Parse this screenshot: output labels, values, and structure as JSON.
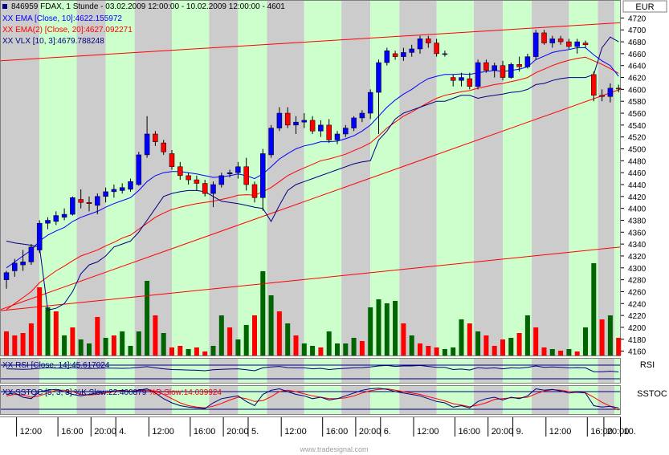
{
  "header": {
    "symbol_line": "846959  FDAX, 1 Stunde - 03.02.2009 12:00:00 - 10.02.2009 12:00:00 - 4601",
    "ema10_label": "XX EMA [Close, 10]:4622.155972",
    "ema20_label": "XX EMA(2) [Close, 20]:4627.092271",
    "vlx_label": "XX VLX [10, 3]:4679.788248"
  },
  "axis": {
    "currency": "EUR",
    "price_ticks": [
      4720,
      4700,
      4680,
      4660,
      4640,
      4620,
      4600,
      4580,
      4560,
      4540,
      4520,
      4500,
      4480,
      4460,
      4440,
      4420,
      4400,
      4380,
      4360,
      4340,
      4320,
      4300,
      4280,
      4260,
      4240,
      4220,
      4200,
      4180,
      4160
    ],
    "time_labels": [
      "12:00",
      "16:00",
      "20:00",
      "4.",
      "12:00",
      "16:00",
      "20:00",
      "5.",
      "12:00",
      "16:00",
      "20:00",
      "6.",
      "12:00",
      "16:00",
      "20:00",
      "9.",
      "12:00",
      "16:00",
      "20:00",
      "10."
    ]
  },
  "rsi_panel": {
    "label": "XX RSI [Close, 14]:45.617024",
    "tag": "RSI"
  },
  "sstoc_panel": {
    "label_k": "XX SSTOC [5, 3, 3]:%K Slow:22.400879",
    "label_d": "%D Slow:14.039924",
    "tag": "SSTOC"
  },
  "watermark": "www.tradesignal.com",
  "colors": {
    "up": "#0000ff",
    "down": "#ff0000",
    "ema10": "#0000ff",
    "ema20": "#ff0000",
    "vlx": "#000080",
    "band_light": "#ccffcc",
    "band_dark": "#cccccc",
    "vol_up": "#006400",
    "vol_down": "#ff0000"
  },
  "chart_data": {
    "type": "candlestick",
    "ylim": [
      4150,
      4730
    ],
    "candles": [
      {
        "o": 4280,
        "h": 4295,
        "l": 4265,
        "c": 4292
      },
      {
        "o": 4295,
        "h": 4315,
        "l": 4285,
        "c": 4308
      },
      {
        "o": 4305,
        "h": 4330,
        "l": 4295,
        "c": 4310
      },
      {
        "o": 4310,
        "h": 4340,
        "l": 4305,
        "c": 4335
      },
      {
        "o": 4330,
        "h": 4380,
        "l": 4325,
        "c": 4375
      },
      {
        "o": 4375,
        "h": 4385,
        "l": 4365,
        "c": 4380
      },
      {
        "o": 4378,
        "h": 4395,
        "l": 4372,
        "c": 4388
      },
      {
        "o": 4385,
        "h": 4400,
        "l": 4380,
        "c": 4390
      },
      {
        "o": 4390,
        "h": 4420,
        "l": 4388,
        "c": 4418
      },
      {
        "o": 4415,
        "h": 4432,
        "l": 4400,
        "c": 4410
      },
      {
        "o": 4410,
        "h": 4420,
        "l": 4395,
        "c": 4408
      },
      {
        "o": 4405,
        "h": 4425,
        "l": 4390,
        "c": 4420
      },
      {
        "o": 4420,
        "h": 4435,
        "l": 4410,
        "c": 4428
      },
      {
        "o": 4428,
        "h": 4440,
        "l": 4418,
        "c": 4432
      },
      {
        "o": 4430,
        "h": 4442,
        "l": 4425,
        "c": 4435
      },
      {
        "o": 4432,
        "h": 4450,
        "l": 4428,
        "c": 4445
      },
      {
        "o": 4440,
        "h": 4495,
        "l": 4438,
        "c": 4490
      },
      {
        "o": 4490,
        "h": 4555,
        "l": 4485,
        "c": 4525
      },
      {
        "o": 4525,
        "h": 4530,
        "l": 4505,
        "c": 4512
      },
      {
        "o": 4510,
        "h": 4515,
        "l": 4490,
        "c": 4495
      },
      {
        "o": 4492,
        "h": 4498,
        "l": 4465,
        "c": 4470
      },
      {
        "o": 4470,
        "h": 4478,
        "l": 4448,
        "c": 4455
      },
      {
        "o": 4455,
        "h": 4460,
        "l": 4440,
        "c": 4448
      },
      {
        "o": 4448,
        "h": 4455,
        "l": 4430,
        "c": 4442
      },
      {
        "o": 4442,
        "h": 4448,
        "l": 4420,
        "c": 4425
      },
      {
        "o": 4425,
        "h": 4445,
        "l": 4402,
        "c": 4440
      },
      {
        "o": 4440,
        "h": 4460,
        "l": 4435,
        "c": 4455
      },
      {
        "o": 4458,
        "h": 4465,
        "l": 4452,
        "c": 4460
      },
      {
        "o": 4460,
        "h": 4478,
        "l": 4450,
        "c": 4470
      },
      {
        "o": 4470,
        "h": 4485,
        "l": 4430,
        "c": 4440
      },
      {
        "o": 4440,
        "h": 4445,
        "l": 4410,
        "c": 4418
      },
      {
        "o": 4418,
        "h": 4500,
        "l": 4396,
        "c": 4492
      },
      {
        "o": 4490,
        "h": 4540,
        "l": 4485,
        "c": 4535
      },
      {
        "o": 4535,
        "h": 4570,
        "l": 4530,
        "c": 4560
      },
      {
        "o": 4560,
        "h": 4570,
        "l": 4535,
        "c": 4540
      },
      {
        "o": 4540,
        "h": 4555,
        "l": 4525,
        "c": 4545
      },
      {
        "o": 4545,
        "h": 4560,
        "l": 4535,
        "c": 4548
      },
      {
        "o": 4548,
        "h": 4555,
        "l": 4525,
        "c": 4530
      },
      {
        "o": 4530,
        "h": 4548,
        "l": 4520,
        "c": 4540
      },
      {
        "o": 4540,
        "h": 4550,
        "l": 4510,
        "c": 4515
      },
      {
        "o": 4515,
        "h": 4530,
        "l": 4508,
        "c": 4525
      },
      {
        "o": 4525,
        "h": 4540,
        "l": 4520,
        "c": 4535
      },
      {
        "o": 4535,
        "h": 4555,
        "l": 4530,
        "c": 4552
      },
      {
        "o": 4552,
        "h": 4565,
        "l": 4545,
        "c": 4560
      },
      {
        "o": 4560,
        "h": 4600,
        "l": 4550,
        "c": 4595
      },
      {
        "o": 4595,
        "h": 4650,
        "l": 4525,
        "c": 4645
      },
      {
        "o": 4645,
        "h": 4670,
        "l": 4640,
        "c": 4665
      },
      {
        "o": 4660,
        "h": 4665,
        "l": 4650,
        "c": 4655
      },
      {
        "o": 4655,
        "h": 4670,
        "l": 4648,
        "c": 4662
      },
      {
        "o": 4662,
        "h": 4675,
        "l": 4655,
        "c": 4668
      },
      {
        "o": 4668,
        "h": 4690,
        "l": 4660,
        "c": 4685
      },
      {
        "o": 4685,
        "h": 4690,
        "l": 4670,
        "c": 4678
      },
      {
        "o": 4678,
        "h": 4685,
        "l": 4655,
        "c": 4660
      },
      {
        "o": 4660,
        "h": 4665,
        "l": 4655,
        "c": 4660
      },
      {
        "o": 4620,
        "h": 4625,
        "l": 4605,
        "c": 4615
      },
      {
        "o": 4615,
        "h": 4628,
        "l": 4605,
        "c": 4620
      },
      {
        "o": 4618,
        "h": 4628,
        "l": 4600,
        "c": 4605
      },
      {
        "o": 4605,
        "h": 4650,
        "l": 4600,
        "c": 4645
      },
      {
        "o": 4645,
        "h": 4650,
        "l": 4628,
        "c": 4632
      },
      {
        "o": 4632,
        "h": 4645,
        "l": 4620,
        "c": 4640
      },
      {
        "o": 4640,
        "h": 4648,
        "l": 4615,
        "c": 4620
      },
      {
        "o": 4620,
        "h": 4645,
        "l": 4618,
        "c": 4642
      },
      {
        "o": 4642,
        "h": 4655,
        "l": 4630,
        "c": 4638
      },
      {
        "o": 4638,
        "h": 4660,
        "l": 4635,
        "c": 4655
      },
      {
        "o": 4655,
        "h": 4700,
        "l": 4650,
        "c": 4695
      },
      {
        "o": 4695,
        "h": 4700,
        "l": 4675,
        "c": 4678
      },
      {
        "o": 4678,
        "h": 4690,
        "l": 4670,
        "c": 4685
      },
      {
        "o": 4685,
        "h": 4690,
        "l": 4675,
        "c": 4680
      },
      {
        "o": 4680,
        "h": 4685,
        "l": 4668,
        "c": 4672
      },
      {
        "o": 4672,
        "h": 4685,
        "l": 4660,
        "c": 4680
      },
      {
        "o": 4678,
        "h": 4682,
        "l": 4670,
        "c": 4675
      },
      {
        "o": 4625,
        "h": 4630,
        "l": 4580,
        "c": 4590
      },
      {
        "o": 4590,
        "h": 4600,
        "l": 4580,
        "c": 4588
      },
      {
        "o": 4588,
        "h": 4610,
        "l": 4578,
        "c": 4602
      },
      {
        "o": 4602,
        "h": 4608,
        "l": 4595,
        "c": 4601
      }
    ],
    "ema10": [
      4300,
      4310,
      4320,
      4330,
      4345,
      4355,
      4362,
      4368,
      4378,
      4385,
      4390,
      4395,
      4402,
      4408,
      4413,
      4418,
      4430,
      4445,
      4455,
      4460,
      4462,
      4462,
      4460,
      4458,
      4455,
      4452,
      4453,
      4455,
      4458,
      4455,
      4450,
      4458,
      4470,
      4483,
      4492,
      4500,
      4505,
      4508,
      4512,
      4512,
      4513,
      4517,
      4522,
      4530,
      4540,
      4555,
      4570,
      4582,
      4592,
      4600,
      4610,
      4618,
      4622,
      4625,
      4625,
      4626,
      4625,
      4628,
      4630,
      4632,
      4630,
      4632,
      4634,
      4638,
      4650,
      4656,
      4662,
      4665,
      4667,
      4670,
      4670,
      4658,
      4648,
      4640,
      4622
    ],
    "ema20": [
      4230,
      4240,
      4250,
      4260,
      4275,
      4285,
      4295,
      4303,
      4312,
      4320,
      4325,
      4330,
      4337,
      4343,
      4350,
      4355,
      4365,
      4375,
      4385,
      4392,
      4398,
      4402,
      4405,
      4408,
      4410,
      4412,
      4415,
      4418,
      4422,
      4423,
      4422,
      4428,
      4435,
      4445,
      4455,
      4462,
      4468,
      4474,
      4480,
      4483,
      4487,
      4491,
      4497,
      4503,
      4510,
      4522,
      4535,
      4545,
      4555,
      4562,
      4570,
      4578,
      4585,
      4590,
      4593,
      4596,
      4598,
      4602,
      4605,
      4608,
      4610,
      4613,
      4616,
      4620,
      4628,
      4634,
      4640,
      4645,
      4649,
      4652,
      4654,
      4648,
      4642,
      4635,
      4627
    ],
    "vlx": [
      4345,
      4342,
      4340,
      4338,
      4335,
      4229,
      4232,
      4240,
      4260,
      4290,
      4305,
      4310,
      4320,
      4335,
      4340,
      4345,
      4360,
      4380,
      4400,
      4420,
      4425,
      4428,
      4430,
      4430,
      4428,
      4420,
      4412,
      4410,
      4408,
      4405,
      4402,
      4400,
      4378,
      4405,
      4430,
      4440,
      4445,
      4450,
      4455,
      4460,
      4465,
      4470,
      4475,
      4478,
      4480,
      4515,
      4530,
      4550,
      4560,
      4565,
      4570,
      4575,
      4580,
      4580,
      4585,
      4590,
      4590,
      4585,
      4588,
      4590,
      4592,
      4595,
      4596,
      4600,
      4608,
      4610,
      4615,
      4618,
      4620,
      4620,
      4620,
      4625,
      4670,
      4688,
      4680
    ],
    "trendlines": [
      {
        "from": [
          0,
          4648
        ],
        "to": [
          74,
          4712
        ]
      },
      {
        "from": [
          0,
          4228
        ],
        "to": [
          74,
          4335
        ]
      },
      {
        "from": [
          0,
          4230
        ],
        "to": [
          74,
          4600
        ]
      }
    ],
    "volume": [
      {
        "v": 30,
        "up": false
      },
      {
        "v": 25,
        "up": false
      },
      {
        "v": 28,
        "up": false
      },
      {
        "v": 40,
        "up": false
      },
      {
        "v": 85,
        "up": false
      },
      {
        "v": 60,
        "up": true
      },
      {
        "v": 55,
        "up": false
      },
      {
        "v": 25,
        "up": true
      },
      {
        "v": 35,
        "up": false
      },
      {
        "v": 20,
        "up": true
      },
      {
        "v": 15,
        "up": true
      },
      {
        "v": 48,
        "up": false
      },
      {
        "v": 22,
        "up": true
      },
      {
        "v": 25,
        "up": false
      },
      {
        "v": 30,
        "up": true
      },
      {
        "v": 12,
        "up": true
      },
      {
        "v": 30,
        "up": true
      },
      {
        "v": 93,
        "up": true
      },
      {
        "v": 50,
        "up": false
      },
      {
        "v": 28,
        "up": true
      },
      {
        "v": 10,
        "up": false
      },
      {
        "v": 12,
        "up": false
      },
      {
        "v": 8,
        "up": true
      },
      {
        "v": 10,
        "up": false
      },
      {
        "v": 5,
        "up": false
      },
      {
        "v": 12,
        "up": true
      },
      {
        "v": 50,
        "up": true
      },
      {
        "v": 35,
        "up": false
      },
      {
        "v": 20,
        "up": true
      },
      {
        "v": 38,
        "up": true
      },
      {
        "v": 50,
        "up": false
      },
      {
        "v": 105,
        "up": true
      },
      {
        "v": 75,
        "up": true
      },
      {
        "v": 55,
        "up": false
      },
      {
        "v": 40,
        "up": true
      },
      {
        "v": 25,
        "up": false
      },
      {
        "v": 15,
        "up": true
      },
      {
        "v": 12,
        "up": true
      },
      {
        "v": 10,
        "up": false
      },
      {
        "v": 30,
        "up": true
      },
      {
        "v": 15,
        "up": true
      },
      {
        "v": 15,
        "up": true
      },
      {
        "v": 22,
        "up": true
      },
      {
        "v": 18,
        "up": false
      },
      {
        "v": 60,
        "up": true
      },
      {
        "v": 70,
        "up": true
      },
      {
        "v": 65,
        "up": true
      },
      {
        "v": 68,
        "up": true
      },
      {
        "v": 40,
        "up": false
      },
      {
        "v": 25,
        "up": true
      },
      {
        "v": 15,
        "up": false
      },
      {
        "v": 12,
        "up": false
      },
      {
        "v": 10,
        "up": false
      },
      {
        "v": 8,
        "up": true
      },
      {
        "v": 10,
        "up": true
      },
      {
        "v": 45,
        "up": true
      },
      {
        "v": 40,
        "up": false
      },
      {
        "v": 30,
        "up": true
      },
      {
        "v": 25,
        "up": false
      },
      {
        "v": 12,
        "up": false
      },
      {
        "v": 20,
        "up": false
      },
      {
        "v": 22,
        "up": true
      },
      {
        "v": 28,
        "up": false
      },
      {
        "v": 50,
        "up": true
      },
      {
        "v": 35,
        "up": false
      },
      {
        "v": 10,
        "up": false
      },
      {
        "v": 8,
        "up": true
      },
      {
        "v": 6,
        "up": false
      },
      {
        "v": 8,
        "up": true
      },
      {
        "v": 5,
        "up": false
      },
      {
        "v": 35,
        "up": true
      },
      {
        "v": 115,
        "up": true
      },
      {
        "v": 45,
        "up": false
      },
      {
        "v": 50,
        "up": true
      },
      {
        "v": 22,
        "up": false
      }
    ],
    "rsi": [
      58,
      57,
      56,
      57,
      60,
      62,
      61,
      60,
      62,
      60,
      59,
      60,
      61,
      61,
      60,
      61,
      64,
      67,
      62,
      58,
      55,
      54,
      53,
      52,
      50,
      54,
      56,
      57,
      58,
      54,
      50,
      62,
      66,
      68,
      63,
      62,
      62,
      58,
      60,
      55,
      58,
      60,
      62,
      63,
      66,
      70,
      72,
      68,
      70,
      70,
      72,
      68,
      64,
      64,
      55,
      57,
      53,
      63,
      60,
      62,
      58,
      62,
      61,
      64,
      70,
      64,
      66,
      64,
      62,
      63,
      62,
      46,
      46,
      48,
      45
    ],
    "stoch_k": [
      70,
      75,
      60,
      55,
      80,
      85,
      88,
      80,
      70,
      65,
      70,
      75,
      80,
      82,
      85,
      80,
      85,
      90,
      75,
      55,
      40,
      30,
      25,
      22,
      20,
      40,
      55,
      60,
      65,
      45,
      30,
      70,
      85,
      90,
      80,
      70,
      65,
      55,
      60,
      50,
      55,
      65,
      75,
      85,
      90,
      92,
      88,
      80,
      75,
      70,
      65,
      55,
      45,
      40,
      25,
      30,
      22,
      45,
      55,
      60,
      50,
      60,
      55,
      65,
      90,
      85,
      88,
      82,
      75,
      78,
      75,
      30,
      25,
      28,
      22
    ],
    "stoch_d": [
      65,
      70,
      68,
      60,
      65,
      75,
      85,
      85,
      80,
      70,
      68,
      70,
      75,
      80,
      82,
      82,
      83,
      85,
      82,
      70,
      55,
      40,
      30,
      25,
      22,
      28,
      38,
      50,
      60,
      55,
      45,
      48,
      62,
      80,
      85,
      80,
      72,
      65,
      60,
      55,
      55,
      58,
      65,
      75,
      83,
      88,
      90,
      85,
      80,
      75,
      70,
      62,
      55,
      47,
      37,
      32,
      26,
      32,
      40,
      52,
      55,
      58,
      58,
      60,
      72,
      82,
      87,
      85,
      80,
      78,
      76,
      60,
      42,
      28,
      14
    ]
  }
}
